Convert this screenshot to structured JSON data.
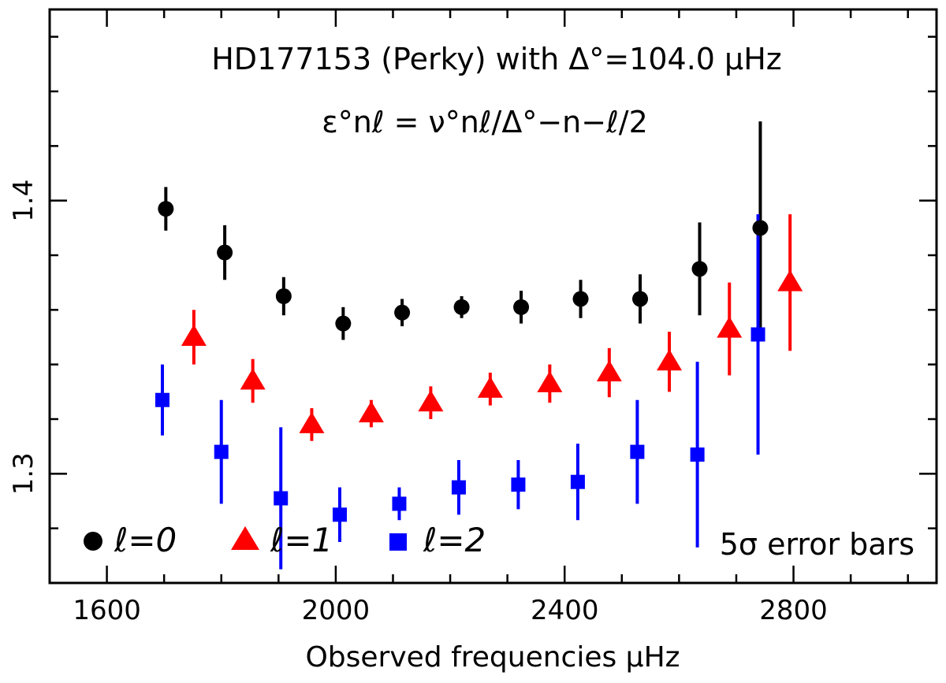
{
  "chart_data": {
    "type": "scatter",
    "title": "HD177153 (Perky) with Δ°=104.0 μHz",
    "subtitle": "ε°nℓ = ν°nℓ/Δ°−n−ℓ/2",
    "xlabel": "Observed frequencies μHz",
    "ylabel": "",
    "xlim": [
      1500,
      3050
    ],
    "ylim": [
      1.26,
      1.47
    ],
    "x_ticks": [
      1600,
      2000,
      2400,
      2800
    ],
    "y_ticks": [
      1.3,
      1.4
    ],
    "annotation": "5σ error bars",
    "series": [
      {
        "name": "ℓ=0",
        "legend_label": "ℓ=0",
        "marker": "circle",
        "color": "#000000",
        "points": [
          {
            "x": 1703,
            "y": 1.397,
            "err": 0.008
          },
          {
            "x": 1806,
            "y": 1.381,
            "err": 0.01
          },
          {
            "x": 1909,
            "y": 1.365,
            "err": 0.007
          },
          {
            "x": 2013,
            "y": 1.355,
            "err": 0.006
          },
          {
            "x": 2116,
            "y": 1.359,
            "err": 0.005
          },
          {
            "x": 2220,
            "y": 1.361,
            "err": 0.004
          },
          {
            "x": 2324,
            "y": 1.361,
            "err": 0.006
          },
          {
            "x": 2428,
            "y": 1.364,
            "err": 0.007
          },
          {
            "x": 2532,
            "y": 1.364,
            "err": 0.009
          },
          {
            "x": 2636,
            "y": 1.375,
            "err": 0.017
          },
          {
            "x": 2742,
            "y": 1.39,
            "err": 0.039
          }
        ]
      },
      {
        "name": "ℓ=1",
        "legend_label": "ℓ=1",
        "marker": "triangle",
        "color": "#ff0000",
        "points": [
          {
            "x": 1752,
            "y": 1.35,
            "err": 0.01
          },
          {
            "x": 1855,
            "y": 1.334,
            "err": 0.008
          },
          {
            "x": 1958,
            "y": 1.318,
            "err": 0.006
          },
          {
            "x": 2062,
            "y": 1.322,
            "err": 0.005
          },
          {
            "x": 2166,
            "y": 1.326,
            "err": 0.006
          },
          {
            "x": 2270,
            "y": 1.331,
            "err": 0.006
          },
          {
            "x": 2374,
            "y": 1.333,
            "err": 0.007
          },
          {
            "x": 2478,
            "y": 1.337,
            "err": 0.009
          },
          {
            "x": 2583,
            "y": 1.341,
            "err": 0.011
          },
          {
            "x": 2688,
            "y": 1.353,
            "err": 0.017
          },
          {
            "x": 2794,
            "y": 1.37,
            "err": 0.025
          }
        ]
      },
      {
        "name": "ℓ=2",
        "legend_label": "ℓ=2",
        "marker": "square",
        "color": "#0000ff",
        "points": [
          {
            "x": 1697,
            "y": 1.327,
            "err": 0.013
          },
          {
            "x": 1800,
            "y": 1.308,
            "err": 0.019
          },
          {
            "x": 1904,
            "y": 1.291,
            "err": 0.026
          },
          {
            "x": 2007,
            "y": 1.285,
            "err": 0.01
          },
          {
            "x": 2111,
            "y": 1.289,
            "err": 0.006
          },
          {
            "x": 2215,
            "y": 1.295,
            "err": 0.01
          },
          {
            "x": 2319,
            "y": 1.296,
            "err": 0.009
          },
          {
            "x": 2423,
            "y": 1.297,
            "err": 0.014
          },
          {
            "x": 2527,
            "y": 1.308,
            "err": 0.019
          },
          {
            "x": 2632,
            "y": 1.307,
            "err": 0.034
          },
          {
            "x": 2738,
            "y": 1.351,
            "err": 0.044
          }
        ]
      }
    ]
  }
}
